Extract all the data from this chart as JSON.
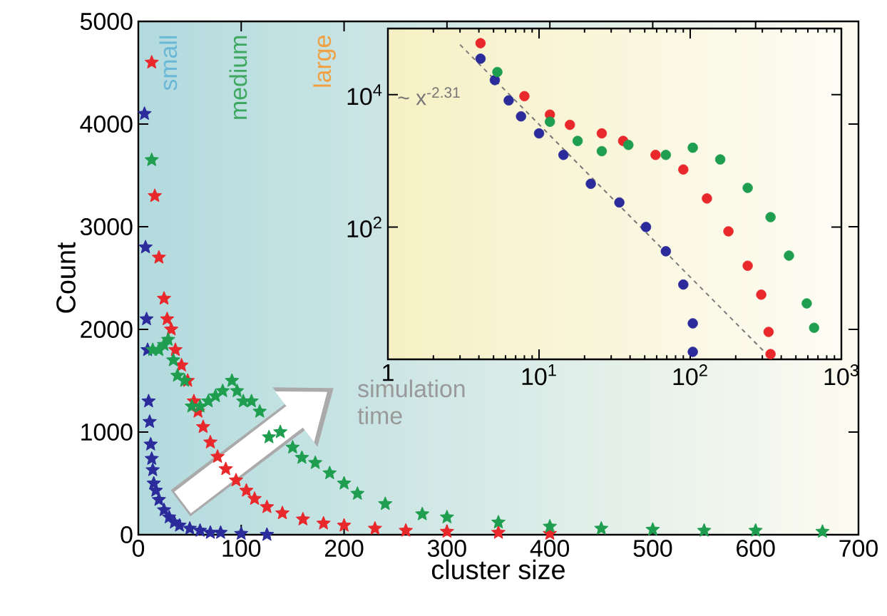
{
  "chart_data": [
    {
      "type": "scatter",
      "xlabel": "cluster size",
      "ylabel": "Count",
      "xlim": [
        0,
        700
      ],
      "ylim": [
        0,
        5000
      ],
      "xticks": [
        0,
        100,
        200,
        300,
        400,
        500,
        600,
        700
      ],
      "yticks": [
        0,
        1000,
        2000,
        3000,
        4000,
        5000
      ],
      "marker": "star",
      "annotations": [
        "small",
        "medium",
        "large",
        "simulation time"
      ],
      "series": [
        {
          "color": "#2b2b9b",
          "x": [
            6,
            7,
            8,
            9,
            10,
            11,
            12,
            13,
            14,
            15,
            17,
            20,
            25,
            30,
            35,
            40,
            50,
            60,
            70,
            80,
            100,
            125
          ],
          "values": [
            4100,
            2800,
            2100,
            1800,
            1300,
            1100,
            880,
            740,
            630,
            500,
            430,
            340,
            240,
            170,
            120,
            90,
            60,
            40,
            20,
            20,
            10,
            0
          ]
        },
        {
          "color": "#e8282b",
          "x": [
            13,
            16,
            20,
            25,
            28,
            32,
            36,
            42,
            48,
            54,
            58,
            63,
            70,
            77,
            85,
            95,
            105,
            113,
            125,
            140,
            160,
            180,
            200,
            230,
            260,
            300,
            350,
            400
          ],
          "values": [
            4600,
            3300,
            2700,
            2300,
            2100,
            2000,
            1800,
            1650,
            1500,
            1300,
            1200,
            1050,
            900,
            760,
            640,
            530,
            430,
            350,
            270,
            210,
            150,
            110,
            90,
            60,
            40,
            30,
            20,
            10
          ]
        },
        {
          "color": "#1f9e4f",
          "x": [
            13,
            14,
            20,
            25,
            29,
            34,
            38,
            45,
            52,
            60,
            68,
            75,
            82,
            91,
            96,
            102,
            110,
            118,
            127,
            138,
            150,
            159,
            172,
            186,
            200,
            213,
            240,
            276,
            300,
            350,
            400,
            450,
            500,
            550,
            600,
            665
          ],
          "values": [
            3650,
            1800,
            1800,
            1850,
            1900,
            1700,
            1550,
            1500,
            1250,
            1250,
            1300,
            1350,
            1400,
            1500,
            1400,
            1300,
            1300,
            1200,
            950,
            1000,
            850,
            750,
            700,
            600,
            500,
            400,
            300,
            200,
            170,
            120,
            80,
            60,
            50,
            40,
            40,
            30
          ]
        }
      ]
    },
    {
      "type": "scatter",
      "log": "xy",
      "xlim": [
        1,
        1000
      ],
      "ylim": [
        1,
        100000
      ],
      "marker": "circle",
      "xticks": [
        {
          "value": 1,
          "label": "1"
        },
        {
          "value": 10,
          "label": "10$^{1}$"
        },
        {
          "value": 100,
          "label": "10$^{2}$"
        },
        {
          "value": 1000,
          "label": "10$^{3}$"
        }
      ],
      "yticks": [
        {
          "value": 100,
          "label": "10$^{2}$"
        },
        {
          "value": 10000,
          "label": "10$^{4}$"
        }
      ],
      "series": [
        {
          "color": "#2b2b9b",
          "x": [
            4.1,
            5.1,
            6.3,
            7.6,
            10,
            14.5,
            22,
            34,
            51,
            69,
            90,
            104,
            104
          ],
          "values": [
            35000,
            16600,
            8200,
            4700,
            2600,
            1230,
            450,
            235,
            100,
            43,
            13.5,
            3.5,
            1.3
          ]
        },
        {
          "color": "#e8282b",
          "x": [
            4.1,
            8,
            11.8,
            16,
            26,
            36,
            59,
            90,
            129,
            179,
            240,
            295,
            330,
            340
          ],
          "values": [
            60000,
            9500,
            5000,
            3500,
            2600,
            2000,
            1230,
            740,
            270,
            86,
            26,
            9.5,
            2.6,
            1.2
          ]
        },
        {
          "color": "#1f9e4f",
          "x": [
            5.3,
            11.8,
            18,
            26,
            39,
            69,
            104,
            158,
            240,
            340,
            450,
            590,
            660
          ],
          "values": [
            22000,
            3900,
            2000,
            1400,
            1740,
            1230,
            1580,
            1050,
            390,
            141,
            37,
            7,
            3
          ]
        },
        {
          "type": "line",
          "name": "~ x$^{-2.31}$",
          "color": "#777777",
          "line_style": "dashed",
          "marker": "none",
          "x": [
            3,
            320
          ],
          "values": [
            57000,
            1.2
          ]
        }
      ]
    }
  ]
}
